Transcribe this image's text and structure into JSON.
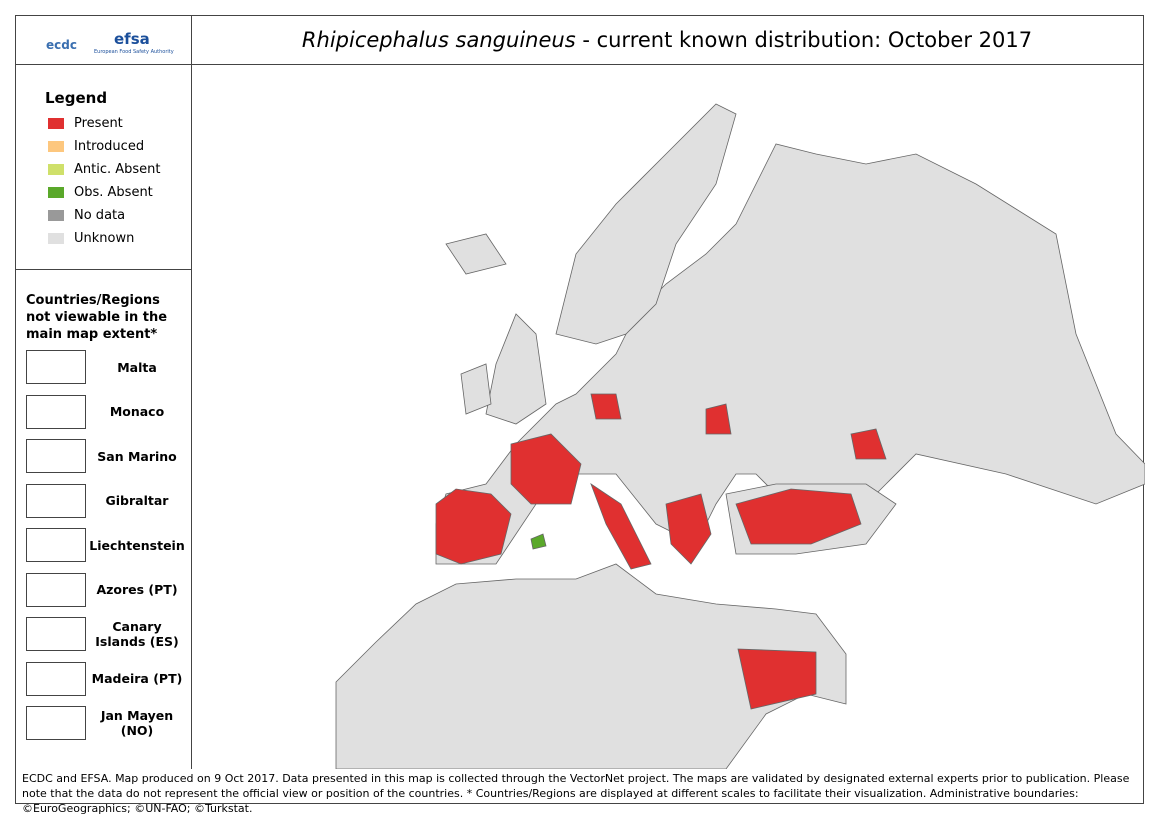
{
  "header": {
    "logo_1": "ecdc",
    "logo_2": "efsa",
    "logo_2_sub": "European Food Safety Authority",
    "title_species": "Rhipicephalus sanguineus",
    "title_rest": "- current known distribution: October 2017"
  },
  "legend": {
    "title": "Legend",
    "items": [
      {
        "label": "Present",
        "color": "#e03030"
      },
      {
        "label": "Introduced",
        "color": "#fdc77e"
      },
      {
        "label": "Antic. Absent",
        "color": "#cfe06a"
      },
      {
        "label": "Obs. Absent",
        "color": "#5aa82a"
      },
      {
        "label": "No data",
        "color": "#999999"
      },
      {
        "label": "Unknown",
        "color": "#e0e0e0"
      }
    ]
  },
  "regions": {
    "title": "Countries/Regions not viewable in the main map extent*",
    "items": [
      "Malta",
      "Monaco",
      "San Marino",
      "Gibraltar",
      "Liechtenstein",
      "Azores (PT)",
      "Canary Islands (ES)",
      "Madeira (PT)",
      "Jan Mayen (NO)"
    ]
  },
  "footer": "ECDC and EFSA. Map produced on 9 Oct 2017. Data presented in this map is collected through the VectorNet project. The maps are validated by designated external experts prior to publication. Please note that the data do not represent the official view or position of the countries. * Countries/Regions are displayed at different scales to facilitate their visualization. Administrative boundaries: ©EuroGeographics; ©UN-FAO; ©Turkstat."
}
